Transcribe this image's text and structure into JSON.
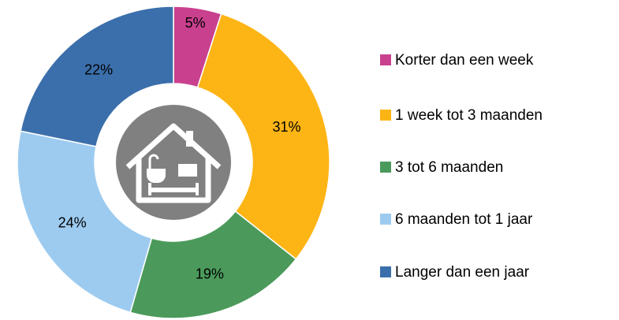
{
  "chart_data": {
    "type": "donut",
    "categories": [
      "Korter dan een week",
      "1 week tot 3 maanden",
      "3 tot 6 maanden",
      "6 maanden tot 1 jaar",
      "Langer dan een jaar"
    ],
    "values": [
      5,
      31,
      19,
      24,
      22
    ],
    "value_labels": [
      "5%",
      "31%",
      "19%",
      "24%",
      "22%"
    ],
    "colors": [
      "#c9418e",
      "#fdb515",
      "#4b9a5b",
      "#9dcbf0",
      "#3b6fab"
    ],
    "legend": "right"
  }
}
